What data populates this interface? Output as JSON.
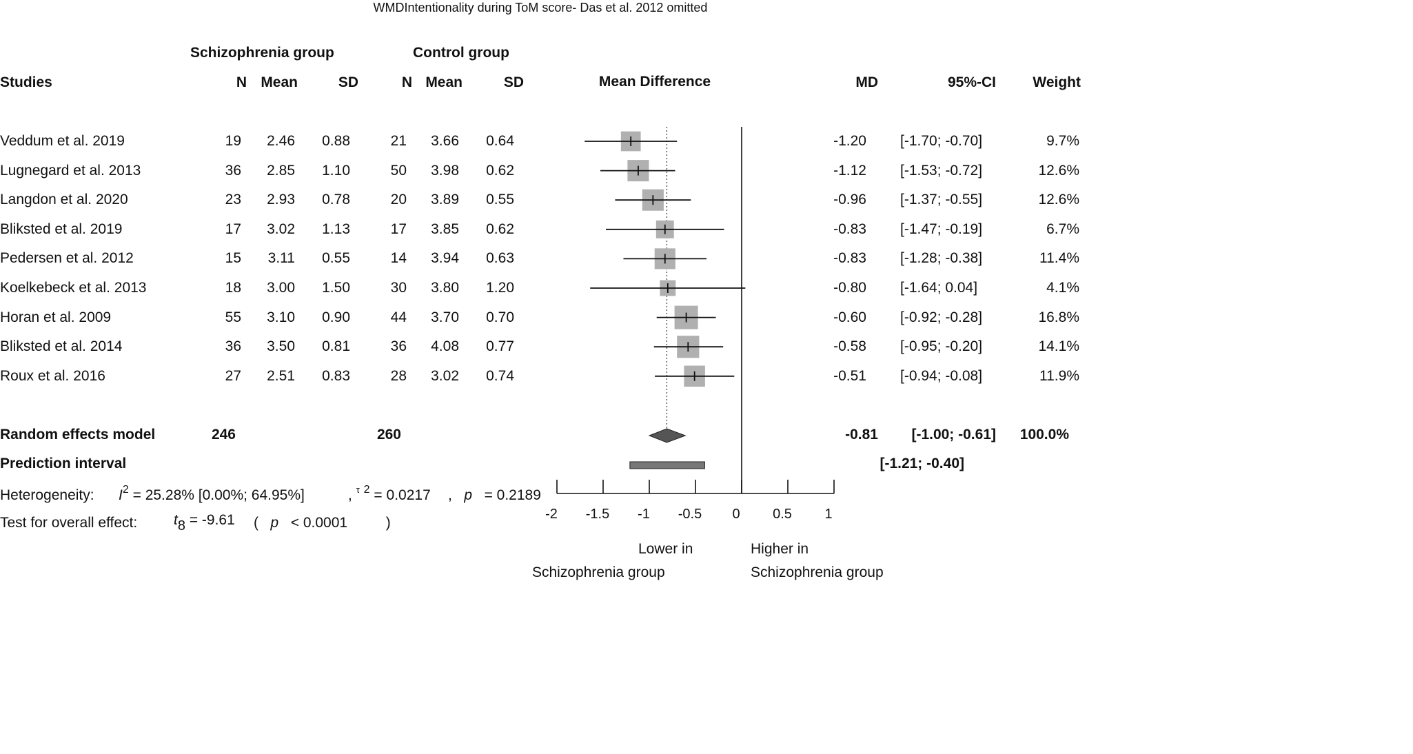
{
  "title": "WMDIntentionality during ToM score- Das et al. 2012 omitted",
  "headers": {
    "group1": "Schizophrenia group",
    "group2": "Control group",
    "studies": "Studies",
    "n": "N",
    "mean": "Mean",
    "sd": "SD",
    "mean_difference": "Mean Difference",
    "md": "MD",
    "ci": "95%-CI",
    "weight": "Weight"
  },
  "studies": [
    {
      "name": "Veddum et al. 2019",
      "n1": "19",
      "mean1": "2.46",
      "sd1": "0.88",
      "n2": "21",
      "mean2": "3.66",
      "sd2": "0.64",
      "md": "-1.20",
      "ci": "[-1.70; -0.70]",
      "weight": "9.7%"
    },
    {
      "name": "Lugnegard et al. 2013",
      "n1": "36",
      "mean1": "2.85",
      "sd1": "1.10",
      "n2": "50",
      "mean2": "3.98",
      "sd2": "0.62",
      "md": "-1.12",
      "ci": "[-1.53; -0.72]",
      "weight": "12.6%"
    },
    {
      "name": "Langdon et al. 2020",
      "n1": "23",
      "mean1": "2.93",
      "sd1": "0.78",
      "n2": "20",
      "mean2": "3.89",
      "sd2": "0.55",
      "md": "-0.96",
      "ci": "[-1.37; -0.55]",
      "weight": "12.6%"
    },
    {
      "name": "Bliksted et al. 2019",
      "n1": "17",
      "mean1": "3.02",
      "sd1": "1.13",
      "n2": "17",
      "mean2": "3.85",
      "sd2": "0.62",
      "md": "-0.83",
      "ci": "[-1.47; -0.19]",
      "weight": "6.7%"
    },
    {
      "name": "Pedersen et al. 2012",
      "n1": "15",
      "mean1": "3.11",
      "sd1": "0.55",
      "n2": "14",
      "mean2": "3.94",
      "sd2": "0.63",
      "md": "-0.83",
      "ci": "[-1.28; -0.38]",
      "weight": "11.4%"
    },
    {
      "name": "Koelkebeck et al. 2013",
      "n1": "18",
      "mean1": "3.00",
      "sd1": "1.50",
      "n2": "30",
      "mean2": "3.80",
      "sd2": "1.20",
      "md": "-0.80",
      "ci": "[-1.64;  0.04]",
      "weight": "4.1%"
    },
    {
      "name": "Horan et al. 2009",
      "n1": "55",
      "mean1": "3.10",
      "sd1": "0.90",
      "n2": "44",
      "mean2": "3.70",
      "sd2": "0.70",
      "md": "-0.60",
      "ci": "[-0.92; -0.28]",
      "weight": "16.8%"
    },
    {
      "name": "Bliksted et al. 2014",
      "n1": "36",
      "mean1": "3.50",
      "sd1": "0.81",
      "n2": "36",
      "mean2": "4.08",
      "sd2": "0.77",
      "md": "-0.58",
      "ci": "[-0.95; -0.20]",
      "weight": "14.1%"
    },
    {
      "name": "Roux et al. 2016",
      "n1": "27",
      "mean1": "2.51",
      "sd1": "0.83",
      "n2": "28",
      "mean2": "3.02",
      "sd2": "0.74",
      "md": "-0.51",
      "ci": "[-0.94; -0.08]",
      "weight": "11.9%"
    }
  ],
  "random_effects": {
    "label": "Random effects model",
    "n1": "246",
    "n2": "260",
    "md": "-0.81",
    "ci": "[-1.00; -0.61]",
    "weight": "100.0%"
  },
  "prediction": {
    "label": "Prediction interval",
    "ci": "[-1.21; -0.40]"
  },
  "heterogeneity": {
    "label": "Heterogeneity:",
    "i2_symbol": "I",
    "i2_power": "2",
    "i2_text": "= 25.28% [0.00%; 64.95%]",
    "tau_prefix": ",",
    "tau_symbol": "τ",
    "tau_power": "2",
    "tau_text": "= 0.0217",
    "p_prefix": ",",
    "p_symbol": "p",
    "p_text": "= 0.2189"
  },
  "overall_effect": {
    "label": "Test for overall effect:",
    "t_symbol": "t",
    "t_sub": "8",
    "t_text": "=   -9.61",
    "p_open": "(",
    "p_symbol": "p",
    "p_text": "< 0.0001",
    "p_close": ")"
  },
  "axis_labels": {
    "left_line1": "Lower in",
    "left_line2": "Schizophrenia group",
    "right_line1": "Higher in",
    "right_line2": "Schizophrenia group"
  },
  "chart_data": {
    "type": "forest",
    "title": "WMDIntentionality during ToM score- Das et al. 2012 omitted",
    "xlim": [
      -2,
      1
    ],
    "xticks": [
      -2,
      -1.5,
      -1,
      -0.5,
      0,
      0.5,
      1
    ],
    "xtick_labels": [
      "-2",
      "-1.5",
      "-1",
      "-0.5",
      "0",
      "0.5",
      "1"
    ],
    "reference_line": 0,
    "summary_line": -0.81,
    "studies": [
      {
        "name": "Veddum et al. 2019",
        "md": -1.2,
        "lower": -1.7,
        "upper": -0.7,
        "weight": 9.7
      },
      {
        "name": "Lugnegard et al. 2013",
        "md": -1.12,
        "lower": -1.53,
        "upper": -0.72,
        "weight": 12.6
      },
      {
        "name": "Langdon et al. 2020",
        "md": -0.96,
        "lower": -1.37,
        "upper": -0.55,
        "weight": 12.6
      },
      {
        "name": "Bliksted et al. 2019",
        "md": -0.83,
        "lower": -1.47,
        "upper": -0.19,
        "weight": 6.7
      },
      {
        "name": "Pedersen et al. 2012",
        "md": -0.83,
        "lower": -1.28,
        "upper": -0.38,
        "weight": 11.4
      },
      {
        "name": "Koelkebeck et al. 2013",
        "md": -0.8,
        "lower": -1.64,
        "upper": 0.04,
        "weight": 4.1
      },
      {
        "name": "Horan et al. 2009",
        "md": -0.6,
        "lower": -0.92,
        "upper": -0.28,
        "weight": 16.8
      },
      {
        "name": "Bliksted et al. 2014",
        "md": -0.58,
        "lower": -0.95,
        "upper": -0.2,
        "weight": 14.1
      },
      {
        "name": "Roux et al. 2016",
        "md": -0.51,
        "lower": -0.94,
        "upper": -0.08,
        "weight": 11.9
      }
    ],
    "pooled": {
      "md": -0.81,
      "lower": -1.0,
      "upper": -0.61
    },
    "prediction_interval": {
      "lower": -1.21,
      "upper": -0.4
    },
    "colors": {
      "square": "#b0b0b0",
      "diamond": "#555555",
      "prediction": "#777777",
      "line": "#111111"
    }
  }
}
